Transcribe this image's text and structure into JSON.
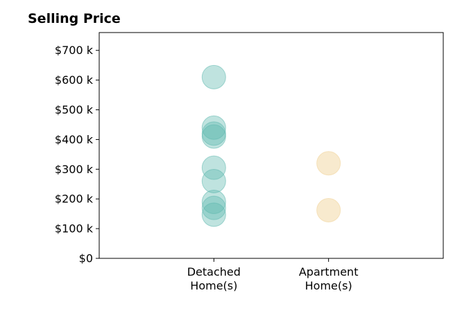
{
  "chart_data": {
    "type": "scatter",
    "title": "Selling Price",
    "xlabel": "",
    "ylabel": "",
    "categories": [
      "Detached|Home(s)",
      "Apartment|Home(s)"
    ],
    "xlim": [
      -1,
      2
    ],
    "ylim": [
      0,
      760
    ],
    "yticks": [
      0,
      100,
      200,
      300,
      400,
      500,
      600,
      700
    ],
    "ytick_labels": [
      "$0",
      "$100 k",
      "$200 k",
      "$300 k",
      "$400 k",
      "$500 k",
      "$600 k",
      "$700 k"
    ],
    "grid": false,
    "series": [
      {
        "category_index": 0,
        "color": "#5fb8ae",
        "opacity": 0.4,
        "values": [
          610,
          440,
          420,
          410,
          305,
          260,
          190,
          170,
          147
        ]
      },
      {
        "category_index": 1,
        "color": "#f2d9a6",
        "opacity": 0.55,
        "values": [
          320,
          162
        ]
      }
    ]
  }
}
